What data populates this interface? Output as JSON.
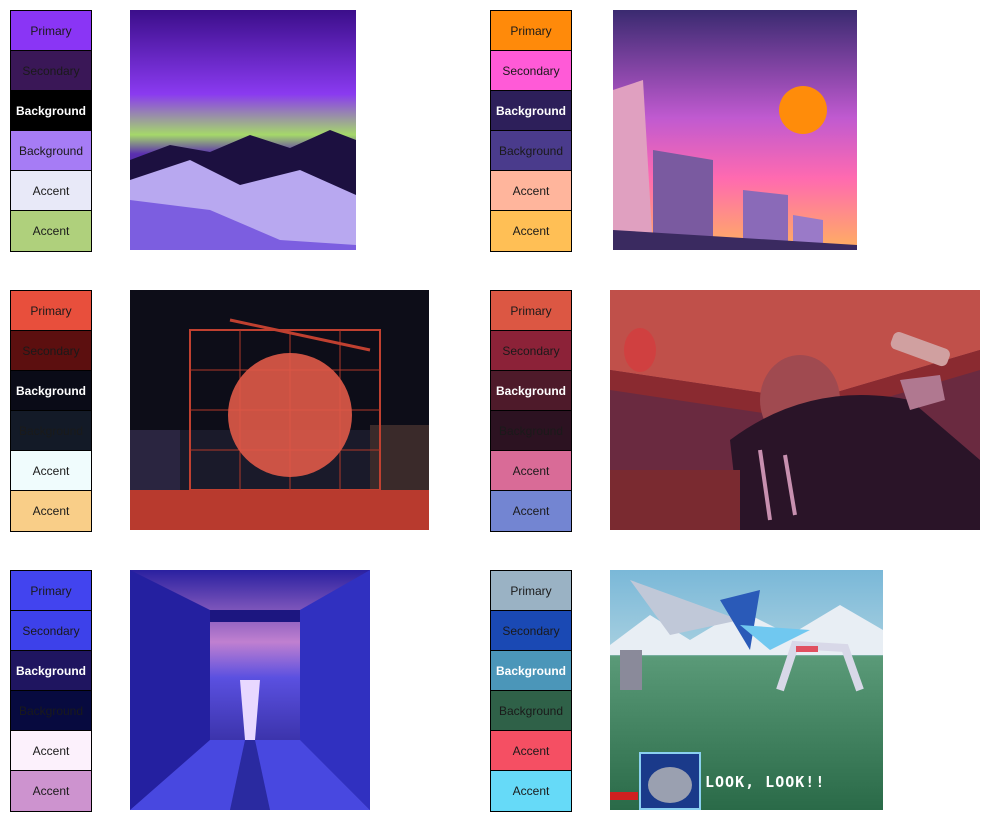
{
  "palettes": [
    {
      "swatches": [
        {
          "label": "Primary",
          "color": "#8a35f5",
          "text": "#1a1a1a",
          "bold": false
        },
        {
          "label": "Secondary",
          "color": "#3a1757",
          "text": "#1a1a1a",
          "bold": false
        },
        {
          "label": "Background",
          "color": "#000000",
          "text": "#ffffff",
          "bold": true
        },
        {
          "label": "Background",
          "color": "#a67cf5",
          "text": "#1a1a1a",
          "bold": false
        },
        {
          "label": "Accent",
          "color": "#e8e9f8",
          "text": "#1a1a1a",
          "bold": false
        },
        {
          "label": "Accent",
          "color": "#afd07c",
          "text": "#1a1a1a",
          "bold": false
        }
      ]
    },
    {
      "swatches": [
        {
          "label": "Primary",
          "color": "#ff8a0a",
          "text": "#1a1a1a",
          "bold": false
        },
        {
          "label": "Secondary",
          "color": "#ff5ad7",
          "text": "#1a1a1a",
          "bold": false
        },
        {
          "label": "Background",
          "color": "#2d1f5a",
          "text": "#ffffff",
          "bold": true
        },
        {
          "label": "Background",
          "color": "#4a3b8c",
          "text": "#1a1a1a",
          "bold": false
        },
        {
          "label": "Accent",
          "color": "#ffb59c",
          "text": "#1a1a1a",
          "bold": false
        },
        {
          "label": "Accent",
          "color": "#ffbf55",
          "text": "#1a1a1a",
          "bold": false
        }
      ]
    },
    {
      "swatches": [
        {
          "label": "Primary",
          "color": "#e84f3c",
          "text": "#1a1a1a",
          "bold": false
        },
        {
          "label": "Secondary",
          "color": "#5c0f0f",
          "text": "#1a1a1a",
          "bold": false
        },
        {
          "label": "Background",
          "color": "#0a0b17",
          "text": "#ffffff",
          "bold": true
        },
        {
          "label": "Background",
          "color": "#131a27",
          "text": "#1a1a1a",
          "bold": false
        },
        {
          "label": "Accent",
          "color": "#f0fcfd",
          "text": "#1a1a1a",
          "bold": false
        },
        {
          "label": "Accent",
          "color": "#f9ce88",
          "text": "#1a1a1a",
          "bold": false
        }
      ]
    },
    {
      "swatches": [
        {
          "label": "Primary",
          "color": "#dc5743",
          "text": "#1a1a1a",
          "bold": false
        },
        {
          "label": "Secondary",
          "color": "#8c2238",
          "text": "#1a1a1a",
          "bold": false
        },
        {
          "label": "Background",
          "color": "#4e1a2a",
          "text": "#ffffff",
          "bold": true
        },
        {
          "label": "Background",
          "color": "#2c1221",
          "text": "#1a1a1a",
          "bold": false
        },
        {
          "label": "Accent",
          "color": "#d96b97",
          "text": "#1a1a1a",
          "bold": false
        },
        {
          "label": "Accent",
          "color": "#7385d2",
          "text": "#1a1a1a",
          "bold": false
        }
      ]
    },
    {
      "swatches": [
        {
          "label": "Primary",
          "color": "#4244ef",
          "text": "#1a1a1a",
          "bold": false
        },
        {
          "label": "Secondary",
          "color": "#3d41ea",
          "text": "#1a1a1a",
          "bold": false
        },
        {
          "label": "Background",
          "color": "#1f1560",
          "text": "#ffffff",
          "bold": true
        },
        {
          "label": "Background",
          "color": "#070a3f",
          "text": "#1a1a1a",
          "bold": false
        },
        {
          "label": "Accent",
          "color": "#fcf1fc",
          "text": "#1a1a1a",
          "bold": false
        },
        {
          "label": "Accent",
          "color": "#cd93cf",
          "text": "#1a1a1a",
          "bold": false
        }
      ]
    },
    {
      "swatches": [
        {
          "label": "Primary",
          "color": "#9ab2c4",
          "text": "#1a1a1a",
          "bold": false
        },
        {
          "label": "Secondary",
          "color": "#1a49b4",
          "text": "#1a1a1a",
          "bold": false
        },
        {
          "label": "Background",
          "color": "#4b96b9",
          "text": "#ffffff",
          "bold": true
        },
        {
          "label": "Background",
          "color": "#2f6148",
          "text": "#1a1a1a",
          "bold": false
        },
        {
          "label": "Accent",
          "color": "#f54f63",
          "text": "#1a1a1a",
          "bold": false
        },
        {
          "label": "Accent",
          "color": "#66daf8",
          "text": "#1a1a1a",
          "bold": false
        }
      ]
    }
  ],
  "images": [
    {
      "subject": "aurora-mountain-image"
    },
    {
      "subject": "city-sunset-image"
    },
    {
      "subject": "scaffold-sphere-image"
    },
    {
      "subject": "person-under-table-image"
    },
    {
      "subject": "blue-hallway-image"
    },
    {
      "subject": "pixel-game-image",
      "caption": "LOOK, LOOK!!"
    }
  ]
}
